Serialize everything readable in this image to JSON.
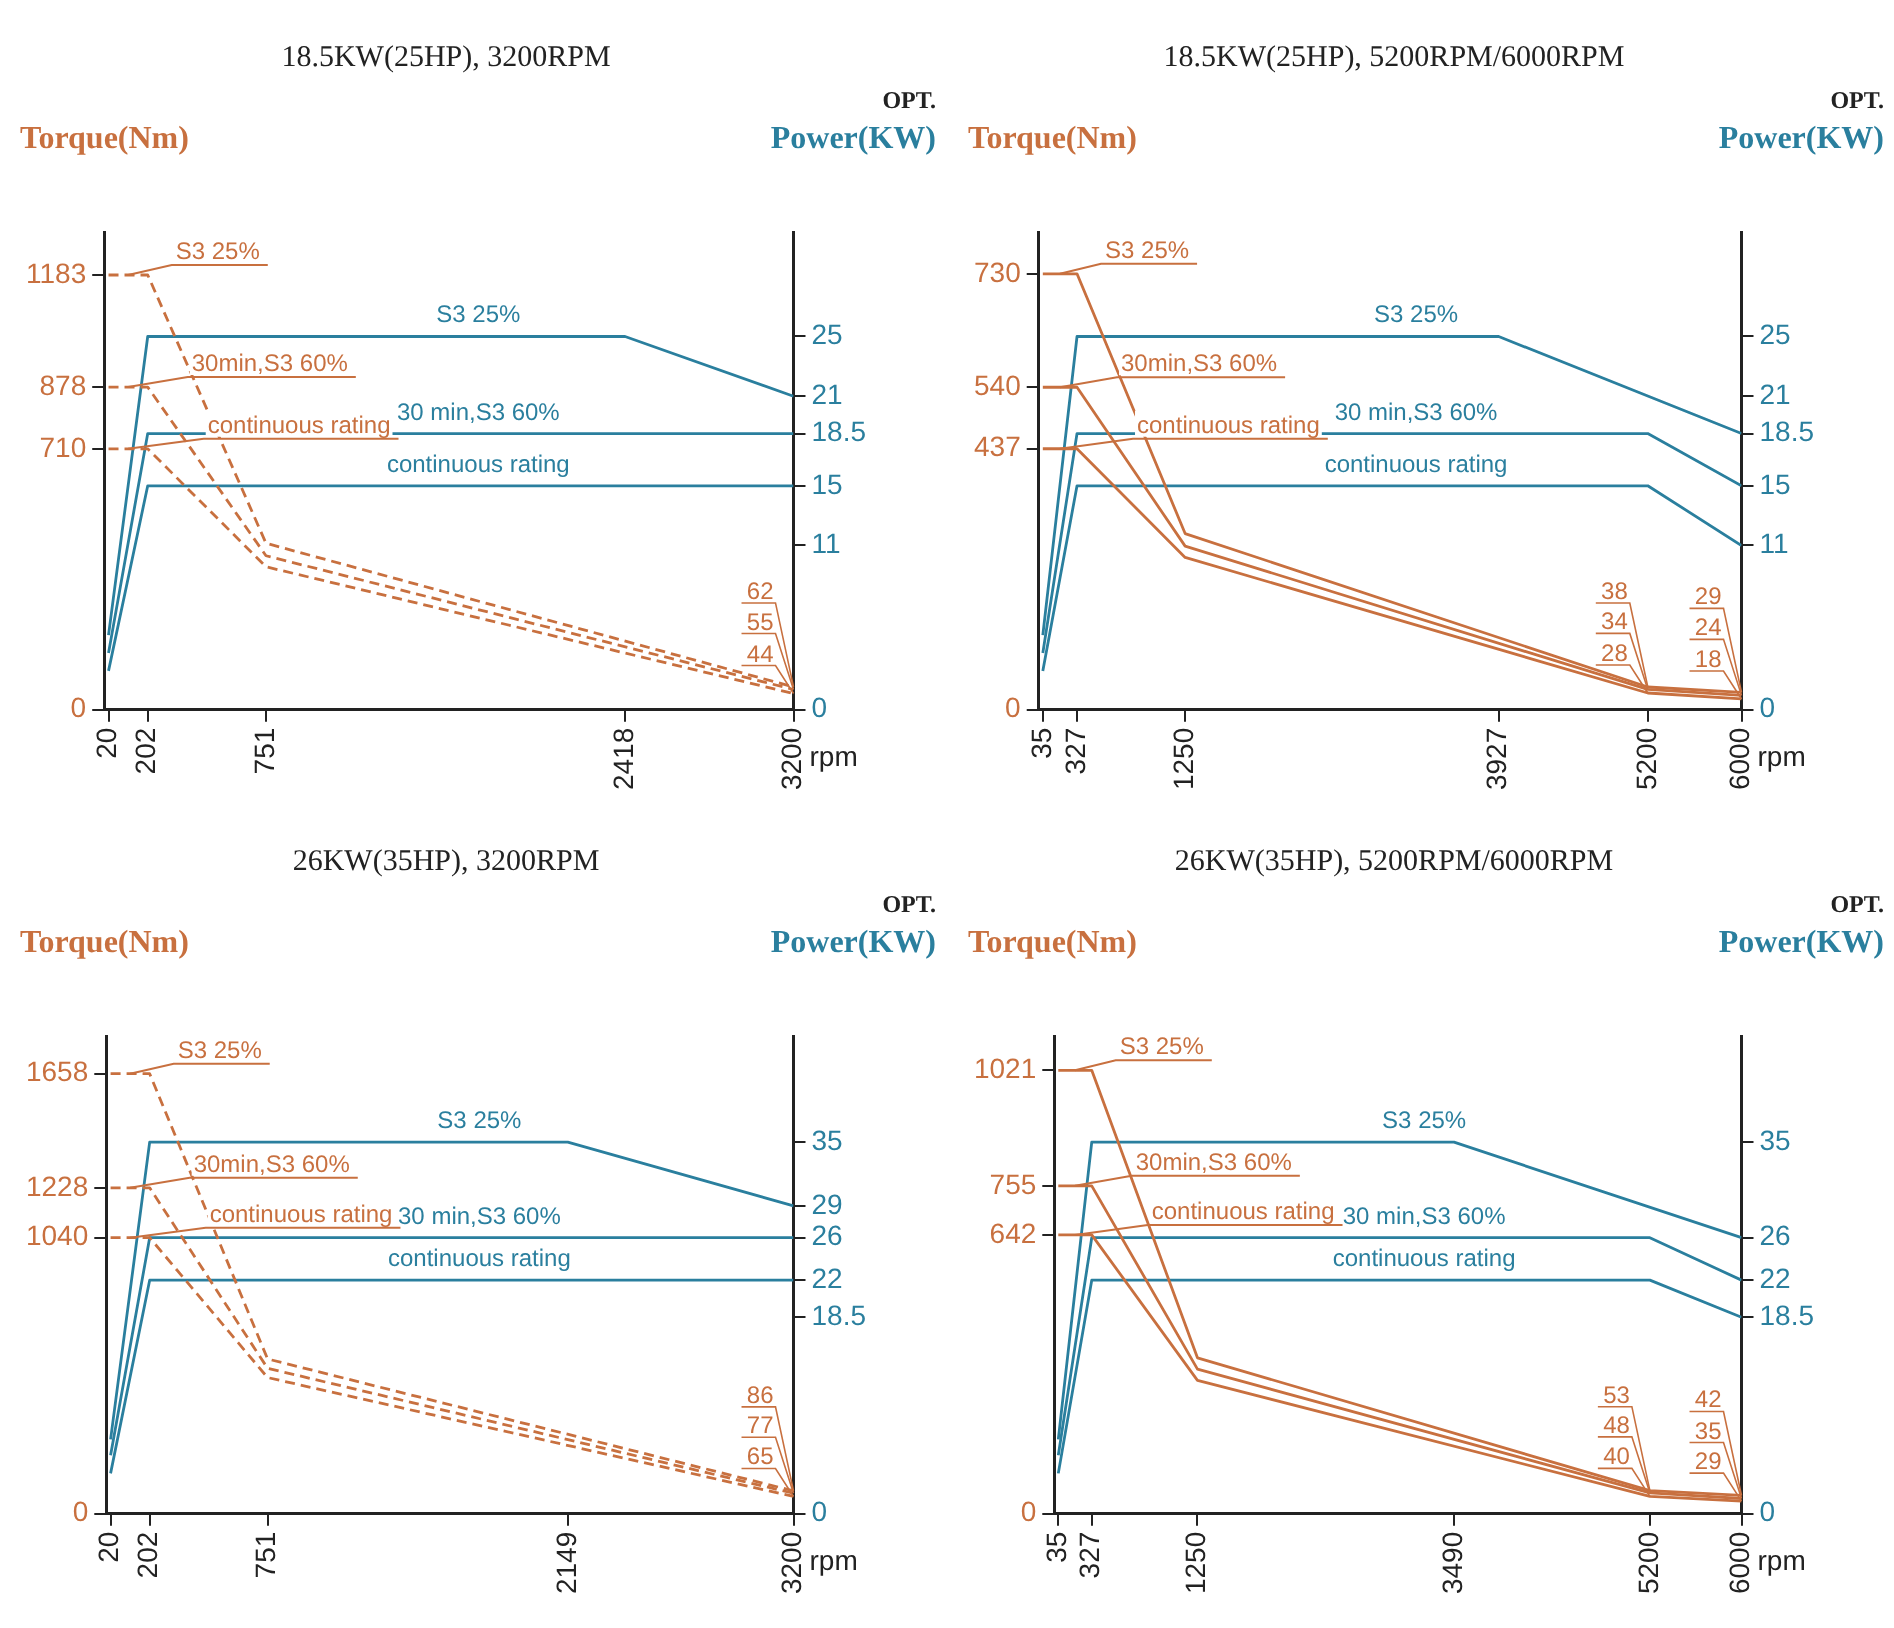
{
  "chart_data": [
    {
      "type": "line",
      "title": "18.5KW(25HP), 3200RPM",
      "xlabel": "rpm",
      "ylabel": "Torque(Nm)",
      "y2label": "Power(KW)",
      "annotations": [
        "OPT."
      ],
      "xlim": [
        0,
        3200
      ],
      "xticks": [
        20,
        202,
        751,
        2418,
        3200
      ],
      "ylim": [
        0,
        1300
      ],
      "yticks": [
        0,
        710,
        878,
        1183
      ],
      "y2lim": [
        0,
        32
      ],
      "y2ticks": [
        0,
        11,
        15,
        18.5,
        21,
        25
      ],
      "grid": false,
      "legend": false,
      "marker": "none",
      "series": [
        {
          "name": "S3 25%",
          "color": "#c8703f",
          "line_style": "dashed",
          "x": [
            20,
            202,
            751,
            3200
          ],
          "values": [
            1183,
            1183,
            453,
            62
          ],
          "value_labels": [
            null,
            null,
            null,
            "62"
          ]
        },
        {
          "name": "30min,S3 60%",
          "color": "#c8703f",
          "line_style": "dashed",
          "x": [
            20,
            202,
            751,
            3200
          ],
          "values": [
            878,
            878,
            419,
            55
          ],
          "value_labels": [
            null,
            null,
            null,
            "55"
          ]
        },
        {
          "name": "continuous rating",
          "color": "#c8703f",
          "line_style": "dashed",
          "x": [
            20,
            202,
            751,
            3200
          ],
          "values": [
            710,
            710,
            389,
            44
          ],
          "value_labels": [
            null,
            null,
            null,
            "44"
          ]
        },
        {
          "name": "S3 25%",
          "color": "#2a7f9e",
          "axis": "y2",
          "x": [
            20,
            202,
            2418,
            3200
          ],
          "values": [
            5,
            25,
            25,
            21
          ]
        },
        {
          "name": "30 min,S3 60%",
          "color": "#2a7f9e",
          "axis": "y2",
          "x": [
            20,
            202,
            3200
          ],
          "values": [
            3.8,
            18.5,
            18.5
          ]
        },
        {
          "name": "continuous rating",
          "color": "#2a7f9e",
          "axis": "y2",
          "x": [
            20,
            202,
            3200
          ],
          "values": [
            2.6,
            15,
            15
          ]
        }
      ]
    },
    {
      "type": "line",
      "title": "18.5KW(25HP), 5200RPM/6000RPM",
      "xlabel": "rpm",
      "ylabel": "Torque(Nm)",
      "y2label": "Power(KW)",
      "annotations": [
        "OPT."
      ],
      "xlim": [
        0,
        6000
      ],
      "xticks": [
        35,
        327,
        1250,
        3927,
        5200,
        6000
      ],
      "ylim": [
        0,
        800
      ],
      "yticks": [
        0,
        437,
        540,
        730
      ],
      "y2lim": [
        0,
        32
      ],
      "y2ticks": [
        0,
        11,
        15,
        18.5,
        21,
        25
      ],
      "grid": false,
      "legend": false,
      "marker": "none",
      "series": [
        {
          "name": "S3 25%",
          "color": "#c8703f",
          "line_style": "solid",
          "x": [
            35,
            327,
            1250,
            5200,
            6000
          ],
          "values": [
            730,
            730,
            295,
            38,
            29
          ],
          "value_labels": [
            null,
            null,
            null,
            "38",
            "29"
          ]
        },
        {
          "name": "30min,S3 60%",
          "color": "#c8703f",
          "line_style": "solid",
          "x": [
            35,
            327,
            1250,
            5200,
            6000
          ],
          "values": [
            540,
            540,
            274,
            34,
            24
          ],
          "value_labels": [
            null,
            null,
            null,
            "34",
            "24"
          ]
        },
        {
          "name": "continuous rating",
          "color": "#c8703f",
          "line_style": "solid",
          "x": [
            35,
            327,
            1250,
            5200,
            6000
          ],
          "values": [
            437,
            437,
            255,
            28,
            18
          ],
          "value_labels": [
            null,
            null,
            null,
            "28",
            "18"
          ]
        },
        {
          "name": "S3 25%",
          "color": "#2a7f9e",
          "axis": "y2",
          "x": [
            35,
            327,
            3927,
            6000
          ],
          "values": [
            5,
            25,
            25,
            18.5
          ]
        },
        {
          "name": "30 min,S3 60%",
          "color": "#2a7f9e",
          "axis": "y2",
          "x": [
            35,
            327,
            5200,
            6000
          ],
          "values": [
            3.8,
            18.5,
            18.5,
            15
          ]
        },
        {
          "name": "continuous rating",
          "color": "#2a7f9e",
          "axis": "y2",
          "x": [
            35,
            327,
            5200,
            6000
          ],
          "values": [
            2.6,
            15,
            15,
            11
          ]
        }
      ]
    },
    {
      "type": "line",
      "title": "26KW(35HP), 3200RPM",
      "xlabel": "rpm",
      "ylabel": "Torque(Nm)",
      "y2label": "Power(KW)",
      "annotations": [
        "OPT."
      ],
      "xlim": [
        0,
        3200
      ],
      "xticks": [
        20,
        202,
        751,
        2149,
        3200
      ],
      "ylim": [
        0,
        1800
      ],
      "yticks": [
        0,
        1040,
        1228,
        1658
      ],
      "y2lim": [
        0,
        45
      ],
      "y2ticks": [
        0,
        18.5,
        22,
        26,
        29,
        35
      ],
      "grid": false,
      "legend": false,
      "marker": "none",
      "series": [
        {
          "name": "S3 25%",
          "color": "#c8703f",
          "line_style": "dashed",
          "x": [
            20,
            202,
            751,
            3200
          ],
          "values": [
            1658,
            1658,
            583,
            86
          ],
          "value_labels": [
            null,
            null,
            null,
            "86"
          ]
        },
        {
          "name": "30min,S3 60%",
          "color": "#c8703f",
          "line_style": "dashed",
          "x": [
            20,
            202,
            751,
            3200
          ],
          "values": [
            1228,
            1228,
            548,
            77
          ],
          "value_labels": [
            null,
            null,
            null,
            "77"
          ]
        },
        {
          "name": "continuous rating",
          "color": "#c8703f",
          "line_style": "dashed",
          "x": [
            20,
            202,
            751,
            3200
          ],
          "values": [
            1040,
            1040,
            513,
            65
          ],
          "value_labels": [
            null,
            null,
            null,
            "65"
          ]
        },
        {
          "name": "S3 25%",
          "color": "#2a7f9e",
          "axis": "y2",
          "x": [
            20,
            202,
            2149,
            3200
          ],
          "values": [
            7,
            35,
            35,
            29
          ]
        },
        {
          "name": "30 min,S3 60%",
          "color": "#2a7f9e",
          "axis": "y2",
          "x": [
            20,
            202,
            3200
          ],
          "values": [
            5.5,
            26,
            26
          ]
        },
        {
          "name": "continuous rating",
          "color": "#2a7f9e",
          "axis": "y2",
          "x": [
            20,
            202,
            3200
          ],
          "values": [
            3.8,
            22,
            22
          ]
        }
      ]
    },
    {
      "type": "line",
      "title": "26KW(35HP), 5200RPM/6000RPM",
      "xlabel": "rpm",
      "ylabel": "Torque(Nm)",
      "y2label": "Power(KW)",
      "annotations": [
        "OPT."
      ],
      "xlim": [
        0,
        6000
      ],
      "xticks": [
        35,
        327,
        1250,
        3490,
        5200,
        6000
      ],
      "ylim": [
        0,
        1100
      ],
      "yticks": [
        0,
        642,
        755,
        1021
      ],
      "y2lim": [
        0,
        45
      ],
      "y2ticks": [
        0,
        18.5,
        22,
        26,
        35
      ],
      "grid": false,
      "legend": false,
      "marker": "none",
      "series": [
        {
          "name": "S3 25%",
          "color": "#c8703f",
          "line_style": "solid",
          "x": [
            35,
            327,
            1250,
            5200,
            6000
          ],
          "values": [
            1021,
            1021,
            359,
            53,
            42
          ],
          "value_labels": [
            null,
            null,
            null,
            "53",
            "42"
          ]
        },
        {
          "name": "30min,S3 60%",
          "color": "#c8703f",
          "line_style": "solid",
          "x": [
            35,
            327,
            1250,
            5200,
            6000
          ],
          "values": [
            755,
            755,
            333,
            48,
            35
          ],
          "value_labels": [
            null,
            null,
            null,
            "48",
            "35"
          ]
        },
        {
          "name": "continuous rating",
          "color": "#c8703f",
          "line_style": "solid",
          "x": [
            35,
            327,
            1250,
            5200,
            6000
          ],
          "values": [
            642,
            642,
            307,
            40,
            29
          ],
          "value_labels": [
            null,
            null,
            null,
            "40",
            "29"
          ]
        },
        {
          "name": "S3 25%",
          "color": "#2a7f9e",
          "axis": "y2",
          "x": [
            35,
            327,
            3490,
            6000
          ],
          "values": [
            7,
            35,
            35,
            26
          ]
        },
        {
          "name": "30 min,S3 60%",
          "color": "#2a7f9e",
          "axis": "y2",
          "x": [
            35,
            327,
            5200,
            6000
          ],
          "values": [
            5.5,
            26,
            26,
            22
          ]
        },
        {
          "name": "continuous rating",
          "color": "#2a7f9e",
          "axis": "y2",
          "x": [
            35,
            327,
            5200,
            6000
          ],
          "values": [
            3.8,
            22,
            22,
            18.5
          ]
        }
      ]
    }
  ]
}
